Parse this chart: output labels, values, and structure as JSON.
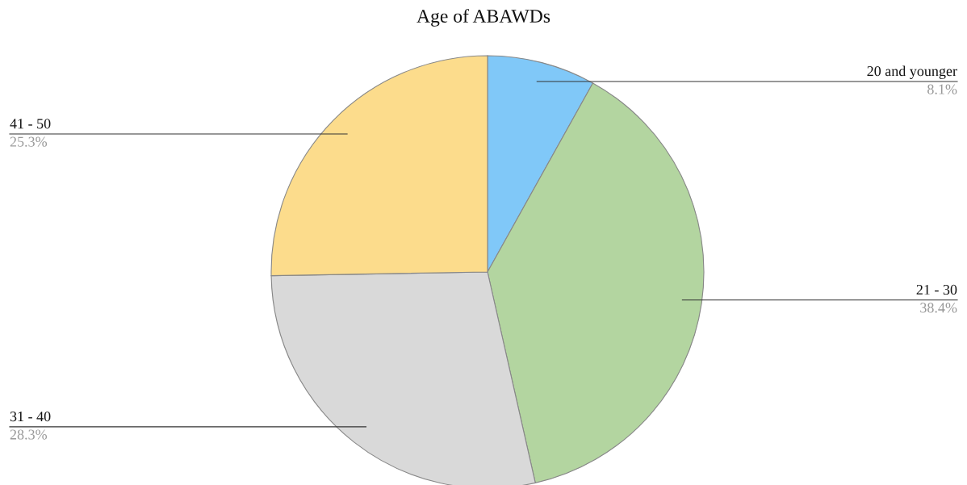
{
  "chart_data": {
    "type": "pie",
    "title": "Age of ABAWDs",
    "categories": [
      "20 and younger",
      "21 - 30",
      "31 - 40",
      "41 - 50"
    ],
    "values": [
      8.1,
      38.4,
      28.3,
      25.3
    ],
    "colors": [
      "#80c8f8",
      "#b3d5a0",
      "#d9d9d9",
      "#fcdc8c"
    ],
    "value_labels": [
      "8.1%",
      "38.4%",
      "28.3%",
      "25.3%"
    ]
  }
}
